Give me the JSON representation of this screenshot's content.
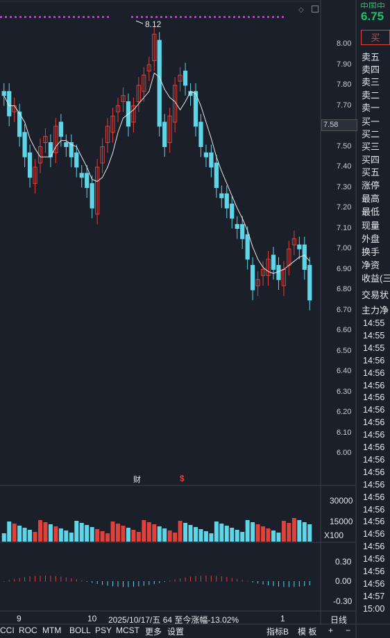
{
  "quote": {
    "last_price": "6.75",
    "buy_button": "买"
  },
  "order_book": [
    "卖五",
    "卖四",
    "卖三",
    "卖二",
    "卖一",
    "买一",
    "买二",
    "买三",
    "买四",
    "买五"
  ],
  "fields": [
    "涨停",
    "最高",
    "最低",
    "现量",
    "外盘",
    "换手",
    "净资",
    "收益(三"
  ],
  "status_rows": [
    "交易状",
    "主力净"
  ],
  "times": [
    "14:55",
    "14:55",
    "14:55",
    "14:56",
    "14:56",
    "14:56",
    "14:56",
    "14:56",
    "14:56",
    "14:56",
    "14:56",
    "14:56",
    "14:56",
    "14:56",
    "14:56",
    "14:56",
    "14:56",
    "14:56",
    "14:56",
    "14:56",
    "14:56",
    "14:56",
    "14:57",
    "15:00"
  ],
  "chart": {
    "price_ticks": [
      "8.00",
      "7.90",
      "7.80",
      "7.70",
      "7.50",
      "7.40",
      "7.30",
      "7.20",
      "7.10",
      "7.00",
      "6.90",
      "6.80",
      "6.70",
      "6.60",
      "6.50",
      "6.40",
      "6.30",
      "6.20",
      "6.10",
      "6.00"
    ],
    "current_price_marker": "7.58",
    "peak_label": "8.12",
    "event_markers": {
      "finance": "财",
      "dividend": "$"
    },
    "volume_ticks": [
      "30000",
      "15000",
      "X100"
    ],
    "macd_ticks": [
      "0.30",
      "0.00",
      "-0.30"
    ],
    "x_labels": [
      "9",
      "10",
      "2025/10/17/五 64 至今涨幅-13.02%",
      "1"
    ]
  },
  "chart_data": {
    "type": "candlestick",
    "y_range": [
      6.0,
      8.12
    ],
    "candles_close": [
      7.75,
      7.65,
      7.7,
      7.55,
      7.45,
      7.35,
      7.4,
      7.5,
      7.55,
      7.45,
      7.6,
      7.55,
      7.5,
      7.45,
      7.4,
      7.35,
      7.3,
      7.2,
      7.4,
      7.5,
      7.6,
      7.65,
      7.7,
      7.75,
      7.6,
      7.7,
      7.8,
      7.85,
      7.9,
      8.05,
      7.6,
      7.5,
      7.65,
      7.8,
      7.85,
      7.8,
      7.75,
      7.6,
      7.5,
      7.45,
      7.4,
      7.3,
      7.25,
      7.2,
      7.15,
      7.1,
      7.05,
      6.95,
      6.8,
      6.85,
      6.9,
      6.95,
      6.9,
      6.85,
      6.9,
      7.0,
      7.05,
      7.0,
      6.9,
      6.75
    ]
  },
  "bottom_tabs": [
    "CCI",
    "ROC",
    "MTM",
    "BOLL",
    "PSY",
    "MCST",
    "更多",
    "设置",
    "指标B",
    "模 板",
    "+",
    "−",
    "日线"
  ]
}
